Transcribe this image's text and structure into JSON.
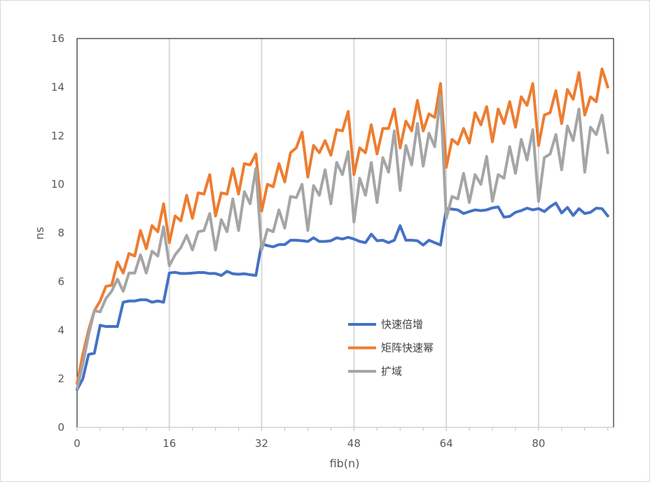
{
  "chart_data": {
    "type": "line",
    "title": "",
    "xlabel": "fib(n)",
    "ylabel": "ns",
    "xlim": [
      0,
      93
    ],
    "ylim": [
      0,
      16
    ],
    "xticks": [
      "0",
      "16",
      "32",
      "48",
      "64",
      "80"
    ],
    "xtick_values": [
      0,
      16,
      32,
      48,
      64,
      80
    ],
    "yticks": [
      "0",
      "2",
      "4",
      "6",
      "8",
      "10",
      "12",
      "14",
      "16"
    ],
    "ytick_values": [
      0,
      2,
      4,
      6,
      8,
      10,
      12,
      14,
      16
    ],
    "grid": true,
    "legend_position": "center-bottom",
    "series": [
      {
        "name": "快速倍增",
        "color": "#4472C4",
        "values": [
          1.55,
          2.0,
          3.0,
          3.05,
          4.2,
          4.15,
          4.15,
          4.15,
          5.15,
          5.2,
          5.2,
          5.25,
          5.25,
          5.15,
          5.2,
          5.15,
          6.35,
          6.38,
          6.33,
          6.33,
          6.35,
          6.37,
          6.37,
          6.33,
          6.33,
          6.25,
          6.42,
          6.32,
          6.3,
          6.32,
          6.28,
          6.25,
          7.55,
          7.48,
          7.43,
          7.52,
          7.52,
          7.7,
          7.7,
          7.68,
          7.65,
          7.8,
          7.65,
          7.65,
          7.68,
          7.8,
          7.75,
          7.82,
          7.75,
          7.65,
          7.6,
          7.95,
          7.68,
          7.7,
          7.6,
          7.7,
          8.3,
          7.7,
          7.7,
          7.68,
          7.5,
          7.7,
          7.6,
          7.5,
          9.0,
          8.98,
          8.95,
          8.8,
          8.88,
          8.95,
          8.92,
          8.95,
          9.03,
          9.07,
          8.65,
          8.68,
          8.85,
          8.92,
          9.02,
          8.95,
          9.0,
          8.88,
          9.08,
          9.23,
          8.82,
          9.05,
          8.72,
          9.0,
          8.8,
          8.85,
          9.02,
          9.0,
          8.7
        ]
      },
      {
        "name": "矩阵快速幂",
        "color": "#ED7D31",
        "values": [
          1.8,
          3.0,
          4.0,
          4.8,
          5.2,
          5.8,
          5.85,
          6.8,
          6.35,
          7.15,
          7.05,
          8.1,
          7.35,
          8.3,
          8.05,
          9.2,
          7.6,
          8.7,
          8.5,
          9.55,
          8.6,
          9.65,
          9.6,
          10.4,
          8.7,
          9.65,
          9.6,
          10.65,
          9.6,
          10.85,
          10.8,
          11.25,
          8.9,
          10.0,
          9.9,
          10.85,
          10.1,
          11.3,
          11.5,
          12.15,
          10.3,
          11.6,
          11.3,
          11.8,
          11.2,
          12.25,
          12.2,
          13.0,
          10.4,
          11.5,
          11.3,
          12.45,
          11.25,
          12.3,
          12.3,
          13.1,
          11.5,
          12.6,
          12.2,
          13.45,
          12.2,
          12.9,
          12.75,
          14.15,
          10.7,
          11.85,
          11.65,
          12.3,
          11.7,
          12.95,
          12.45,
          13.2,
          11.75,
          13.1,
          12.5,
          13.4,
          12.35,
          13.6,
          13.25,
          14.15,
          11.6,
          12.85,
          12.95,
          13.85,
          12.5,
          13.9,
          13.5,
          14.6,
          12.85,
          13.6,
          13.4,
          14.75,
          14.0
        ]
      },
      {
        "name": "扩域",
        "color": "#A5A5A5",
        "values": [
          1.6,
          2.6,
          3.8,
          4.8,
          4.75,
          5.3,
          5.6,
          6.1,
          5.6,
          6.35,
          6.35,
          7.1,
          6.35,
          7.25,
          7.05,
          8.25,
          6.65,
          7.1,
          7.4,
          7.9,
          7.3,
          8.05,
          8.1,
          8.8,
          7.3,
          8.55,
          8.05,
          9.4,
          8.1,
          9.7,
          9.2,
          10.65,
          7.3,
          8.15,
          8.05,
          8.95,
          8.2,
          9.5,
          9.45,
          10.0,
          8.1,
          9.95,
          9.55,
          10.6,
          9.2,
          10.9,
          10.4,
          11.35,
          8.45,
          10.25,
          9.55,
          10.9,
          9.25,
          11.1,
          10.5,
          12.2,
          9.75,
          11.6,
          10.8,
          12.5,
          10.75,
          12.1,
          11.55,
          13.65,
          8.6,
          9.5,
          9.4,
          10.45,
          9.25,
          10.4,
          10.0,
          11.15,
          9.3,
          10.4,
          10.25,
          11.55,
          10.45,
          11.85,
          11.0,
          12.25,
          9.3,
          11.1,
          11.25,
          12.05,
          10.6,
          12.4,
          11.8,
          13.1,
          10.5,
          12.35,
          12.05,
          12.85,
          11.3
        ]
      }
    ]
  }
}
